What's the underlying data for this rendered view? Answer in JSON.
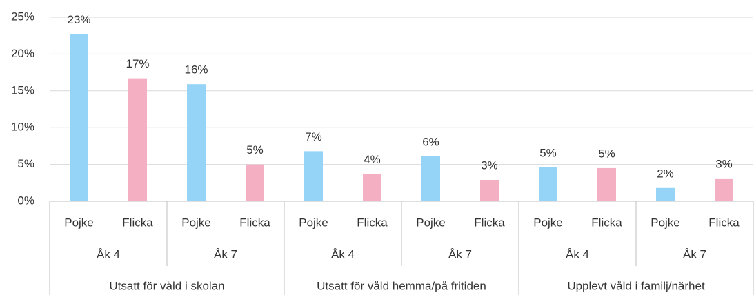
{
  "chart_data": {
    "type": "bar",
    "categories": [
      "Pojke",
      "Flicka",
      "Pojke",
      "Flicka",
      "Pojke",
      "Flicka",
      "Pojke",
      "Flicka",
      "Pojke",
      "Flicka",
      "Pojke",
      "Flicka"
    ],
    "groups": [
      "Åk 4",
      "Åk 7",
      "Åk 4",
      "Åk 7",
      "Åk 4",
      "Åk 7"
    ],
    "supergroups": [
      "Utsatt för våld i skolan",
      "Utsatt för våld hemma/på fritiden",
      "Upplevt våld i familj/närhet"
    ],
    "values": [
      22.7,
      16.7,
      15.9,
      5.0,
      6.8,
      3.7,
      6.1,
      2.9,
      4.6,
      4.5,
      1.8,
      3.1
    ],
    "value_labels": [
      "23%",
      "17%",
      "16%",
      "5%",
      "7%",
      "4%",
      "6%",
      "3%",
      "5%",
      "5%",
      "2%",
      "3%"
    ],
    "colors": [
      "#95d3f7",
      "#f4afc2",
      "#95d3f7",
      "#f4afc2",
      "#95d3f7",
      "#f4afc2",
      "#95d3f7",
      "#f4afc2",
      "#95d3f7",
      "#f4afc2",
      "#95d3f7",
      "#f4afc2"
    ],
    "ylim": [
      0,
      25
    ],
    "yticks": [
      {
        "value": 0,
        "label": "0%"
      },
      {
        "value": 5,
        "label": "5%"
      },
      {
        "value": 10,
        "label": "10%"
      },
      {
        "value": 15,
        "label": "15%"
      },
      {
        "value": 20,
        "label": "20%"
      },
      {
        "value": 25,
        "label": "25%"
      }
    ],
    "grid": true
  }
}
